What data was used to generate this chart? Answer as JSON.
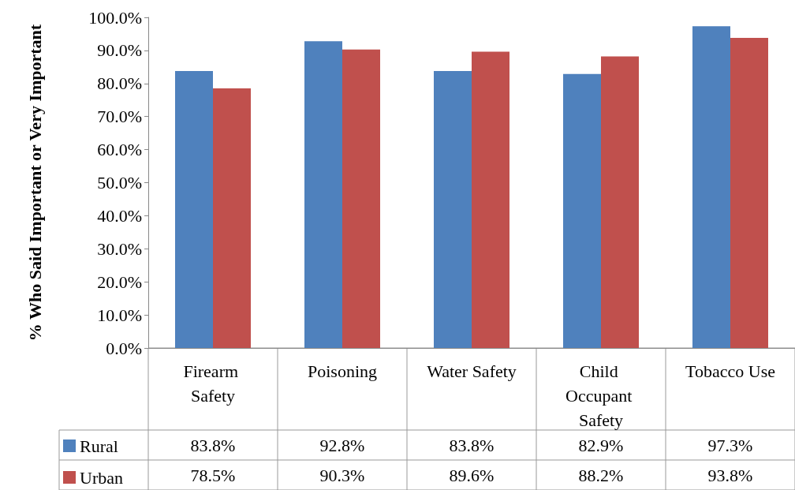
{
  "chart_data": {
    "type": "bar",
    "ylabel": "% Who Said Important or Very Important",
    "categories": [
      "Firearm Safety",
      "Poisoning",
      "Water Safety",
      "Child Occupant Safety",
      "Tobacco Use"
    ],
    "series": [
      {
        "name": "Rural",
        "color": "#4f81bd",
        "values": [
          83.8,
          92.8,
          83.8,
          82.9,
          97.3
        ],
        "value_labels": [
          "83.8%",
          "92.8%",
          "83.8%",
          "82.9%",
          "97.3%"
        ]
      },
      {
        "name": "Urban",
        "color": "#c0504d",
        "values": [
          78.5,
          90.3,
          89.6,
          88.2,
          93.8
        ],
        "value_labels": [
          "78.5%",
          "90.3%",
          "89.6%",
          "88.2%",
          "93.8%"
        ]
      }
    ],
    "ylim": [
      0,
      100
    ],
    "yticks": [
      {
        "value": 0,
        "label": "0.0%"
      },
      {
        "value": 10,
        "label": "10.0%"
      },
      {
        "value": 20,
        "label": "20.0%"
      },
      {
        "value": 30,
        "label": "30.0%"
      },
      {
        "value": 40,
        "label": "40.0%"
      },
      {
        "value": 50,
        "label": "50.0%"
      },
      {
        "value": 60,
        "label": "60.0%"
      },
      {
        "value": 70,
        "label": "70.0%"
      },
      {
        "value": 80,
        "label": "80.0%"
      },
      {
        "value": 90,
        "label": "90.0%"
      },
      {
        "value": 100,
        "label": "100.0%"
      }
    ],
    "grid": false,
    "legend": "bottom left"
  }
}
